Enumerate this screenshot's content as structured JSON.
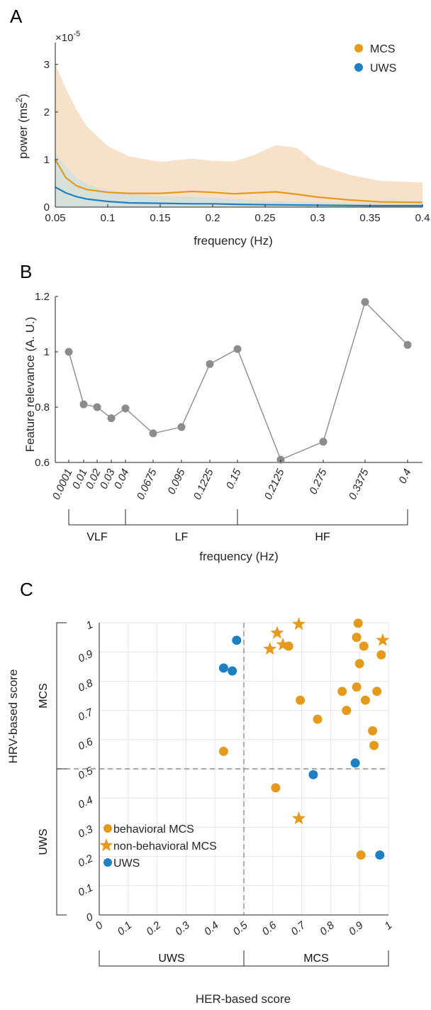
{
  "colors": {
    "mcs": "#E69A1C",
    "uws": "#1E7FC2",
    "mcs_band": "#F7E1C8",
    "uws_band": "#D0E0DE",
    "relevance": "#8C8C8C",
    "axis": "#262626"
  },
  "panels": {
    "a": "A",
    "b": "B",
    "c": "C"
  },
  "chart_data": [
    {
      "id": "A",
      "type": "area",
      "xlabel": "frequency (Hz)",
      "ylabel": "power (ms²)",
      "ylabel_main": "power (ms",
      "ylabel_sup": "2",
      "ylabel_tail": ")",
      "exponent_base": "×10",
      "exponent_power": "-5",
      "xlim": [
        0.05,
        0.4
      ],
      "ylim": [
        0,
        3.4
      ],
      "x_ticks": [
        "0.05",
        "0.1",
        "0.15",
        "0.2",
        "0.25",
        "0.3",
        "0.35",
        "0.4"
      ],
      "y_ticks": [
        "0",
        "1",
        "2",
        "3"
      ],
      "legend": {
        "position": "top-right",
        "items": [
          "MCS",
          "UWS"
        ]
      },
      "series": [
        {
          "name": "MCS",
          "x": [
            0.05,
            0.06,
            0.07,
            0.08,
            0.1,
            0.12,
            0.15,
            0.18,
            0.2,
            0.22,
            0.24,
            0.26,
            0.28,
            0.3,
            0.33,
            0.36,
            0.4
          ],
          "mean": [
            1.0,
            0.62,
            0.45,
            0.37,
            0.31,
            0.29,
            0.29,
            0.33,
            0.31,
            0.28,
            0.3,
            0.32,
            0.27,
            0.21,
            0.15,
            0.11,
            0.1
          ],
          "upper": [
            3.0,
            2.5,
            2.05,
            1.7,
            1.28,
            1.07,
            0.95,
            1.02,
            0.97,
            0.96,
            1.1,
            1.3,
            1.25,
            0.9,
            0.68,
            0.55,
            0.52
          ],
          "lower": [
            0,
            0,
            0,
            0,
            0,
            0,
            0,
            0,
            0,
            0,
            0,
            0,
            0,
            0,
            0,
            0,
            0
          ]
        },
        {
          "name": "UWS",
          "x": [
            0.05,
            0.06,
            0.07,
            0.08,
            0.1,
            0.12,
            0.15,
            0.18,
            0.2,
            0.22,
            0.25,
            0.3,
            0.35,
            0.4
          ],
          "mean": [
            0.42,
            0.3,
            0.22,
            0.17,
            0.12,
            0.09,
            0.08,
            0.07,
            0.07,
            0.06,
            0.05,
            0.04,
            0.03,
            0.03
          ],
          "upper": [
            1.12,
            0.85,
            0.62,
            0.48,
            0.35,
            0.28,
            0.23,
            0.22,
            0.2,
            0.17,
            0.13,
            0.1,
            0.09,
            0.08
          ],
          "lower": [
            0,
            0,
            0,
            0,
            0,
            0,
            0,
            0,
            0,
            0,
            0,
            0,
            0,
            0
          ]
        }
      ]
    },
    {
      "id": "B",
      "type": "line",
      "xlabel": "frequency (Hz)",
      "ylabel": "Feature relevance (A. U.)",
      "ylim": [
        0.6,
        1.2
      ],
      "y_ticks": [
        "0.6",
        "0.8",
        "1",
        "1.2"
      ],
      "categories": [
        "0.0001",
        "0.01",
        "0.02",
        "0.03",
        "0.04",
        "0.0675",
        "0.095",
        "0.1225",
        "0.15",
        "0.2125",
        "0.275",
        "0.3375",
        "0.4"
      ],
      "tick_labels_shown": [
        "0.0001",
        "0.01",
        "0.02",
        "0.03",
        "0.04",
        "0.0675",
        "0.095",
        "0.1225",
        "0.15",
        "0.2125",
        "0.275",
        "0.3375",
        "0.4"
      ],
      "values": [
        1.0,
        0.81,
        0.8,
        0.76,
        0.795,
        0.705,
        0.728,
        0.956,
        1.01,
        0.61,
        0.675,
        1.18,
        1.025
      ],
      "bands": [
        {
          "label": "VLF",
          "from": "0.0001",
          "to": "0.04"
        },
        {
          "label": "LF",
          "from": "0.04",
          "to": "0.15"
        },
        {
          "label": "HF",
          "from": "0.15",
          "to": "0.4"
        }
      ]
    },
    {
      "id": "C",
      "type": "scatter",
      "xlabel": "HER-based score",
      "ylabel": "HRV-based score",
      "xlim": [
        0,
        1
      ],
      "ylim": [
        0,
        1
      ],
      "x_ticks": [
        "0",
        "0.1",
        "0.2",
        "0.3",
        "0.4",
        "0.5",
        "0.6",
        "0.7",
        "0.8",
        "0.9",
        "1"
      ],
      "y_ticks": [
        "0",
        "0.1",
        "0.2",
        "0.3",
        "0.4",
        "0.5",
        "0.6",
        "0.7",
        "0.8",
        "0.9",
        "1"
      ],
      "thresholds": {
        "x": 0.5,
        "y": 0.5
      },
      "x_groups": [
        "UWS",
        "MCS"
      ],
      "y_groups": [
        "UWS",
        "MCS"
      ],
      "legend": {
        "position": "bottom-left",
        "items": [
          "behavioral MCS",
          "non-behavioral MCS",
          "UWS"
        ]
      },
      "series": [
        {
          "name": "behavioral MCS",
          "marker": "circle",
          "points": [
            [
              0.43,
              0.56
            ],
            [
              0.61,
              0.435
            ],
            [
              0.655,
              0.92
            ],
            [
              0.695,
              0.735
            ],
            [
              0.755,
              0.67
            ],
            [
              0.84,
              0.765
            ],
            [
              0.855,
              0.7
            ],
            [
              0.89,
              0.78
            ],
            [
              0.89,
              0.95
            ],
            [
              0.895,
              0.998
            ],
            [
              0.9,
              0.86
            ],
            [
              0.915,
              0.92
            ],
            [
              0.92,
              0.735
            ],
            [
              0.945,
              0.63
            ],
            [
              0.95,
              0.58
            ],
            [
              0.96,
              0.765
            ],
            [
              0.975,
              0.89
            ],
            [
              0.905,
              0.205
            ]
          ]
        },
        {
          "name": "non-behavioral MCS",
          "marker": "star",
          "points": [
            [
              0.59,
              0.91
            ],
            [
              0.615,
              0.965
            ],
            [
              0.635,
              0.925
            ],
            [
              0.69,
              0.995
            ],
            [
              0.69,
              0.33
            ],
            [
              0.98,
              0.94
            ]
          ]
        },
        {
          "name": "UWS",
          "marker": "circle",
          "points": [
            [
              0.43,
              0.845
            ],
            [
              0.46,
              0.835
            ],
            [
              0.475,
              0.94
            ],
            [
              0.74,
              0.48
            ],
            [
              0.885,
              0.52
            ],
            [
              0.97,
              0.205
            ]
          ]
        }
      ]
    }
  ]
}
